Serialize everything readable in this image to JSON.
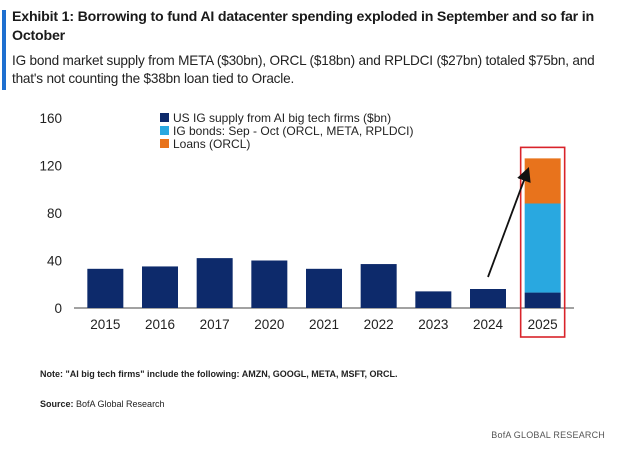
{
  "header": {
    "title": "Exhibit 1: Borrowing to fund AI datacenter spending exploded in September and so far in October",
    "subtitle": "IG bond market supply from META ($30bn), ORCL ($18bn) and RPLDCI ($27bn) totaled $75bn, and that's not counting the $38bn loan tied to Oracle."
  },
  "colors": {
    "accent": "#1e6fd0",
    "us_ig": "#0d2a6b",
    "ig_bonds": "#29a8e0",
    "loans": "#e8731c",
    "highlight_box": "#d9232a"
  },
  "chart_data": {
    "type": "bar",
    "stacked": true,
    "categories": [
      "2015",
      "2016",
      "2017",
      "2020",
      "2021",
      "2022",
      "2023",
      "2024",
      "2025"
    ],
    "series": [
      {
        "name": "US IG supply from AI big tech firms ($bn)",
        "color_key": "us_ig",
        "values": [
          33,
          35,
          42,
          40,
          33,
          37,
          14,
          16,
          13
        ]
      },
      {
        "name": "IG bonds: Sep - Oct (ORCL, META, RPLDCI)",
        "color_key": "ig_bonds",
        "values": [
          0,
          0,
          0,
          0,
          0,
          0,
          0,
          0,
          75
        ]
      },
      {
        "name": "Loans (ORCL)",
        "color_key": "loans",
        "values": [
          0,
          0,
          0,
          0,
          0,
          0,
          0,
          0,
          38
        ]
      }
    ],
    "ylim": [
      0,
      160
    ],
    "yticks": [
      0,
      40,
      80,
      120,
      160
    ],
    "ytick_labels": [
      "0",
      "40",
      "80",
      "120",
      "160"
    ],
    "legend_position": "top-center",
    "highlight_category": "2025",
    "grid": false
  },
  "footer": {
    "note": "Note: \"AI big tech firms\" include the following: AMZN, GOOGL, META, MSFT, ORCL.",
    "source_label": "Source:",
    "source_text": " BofA Global Research",
    "brand": "BofA GLOBAL RESEARCH"
  }
}
